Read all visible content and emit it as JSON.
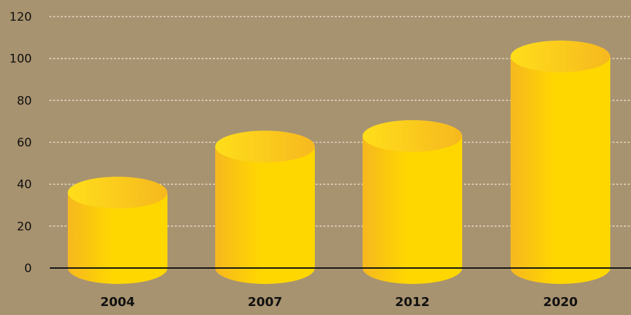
{
  "colors": {
    "background": "#a89370",
    "bar_light": "#ffd700",
    "bar_dark": "#f6b81f",
    "top_light": "#ffde1a",
    "axis": "#111111",
    "grid": "#e8dcc8"
  },
  "chart_data": {
    "type": "bar",
    "bar_style": "3d-cylinder",
    "categories": [
      "2004",
      "2007",
      "2012",
      "2020"
    ],
    "values": [
      36,
      58,
      63,
      101
    ],
    "ylim": [
      0,
      120
    ],
    "yticks": [
      0,
      20,
      40,
      60,
      80,
      100,
      120
    ],
    "ytick_labels": [
      "0",
      "20",
      "40",
      "60",
      "80",
      "100",
      "120"
    ],
    "grid": "horizontal-dotted",
    "legend": "none",
    "title": "",
    "xlabel": "",
    "ylabel": ""
  }
}
